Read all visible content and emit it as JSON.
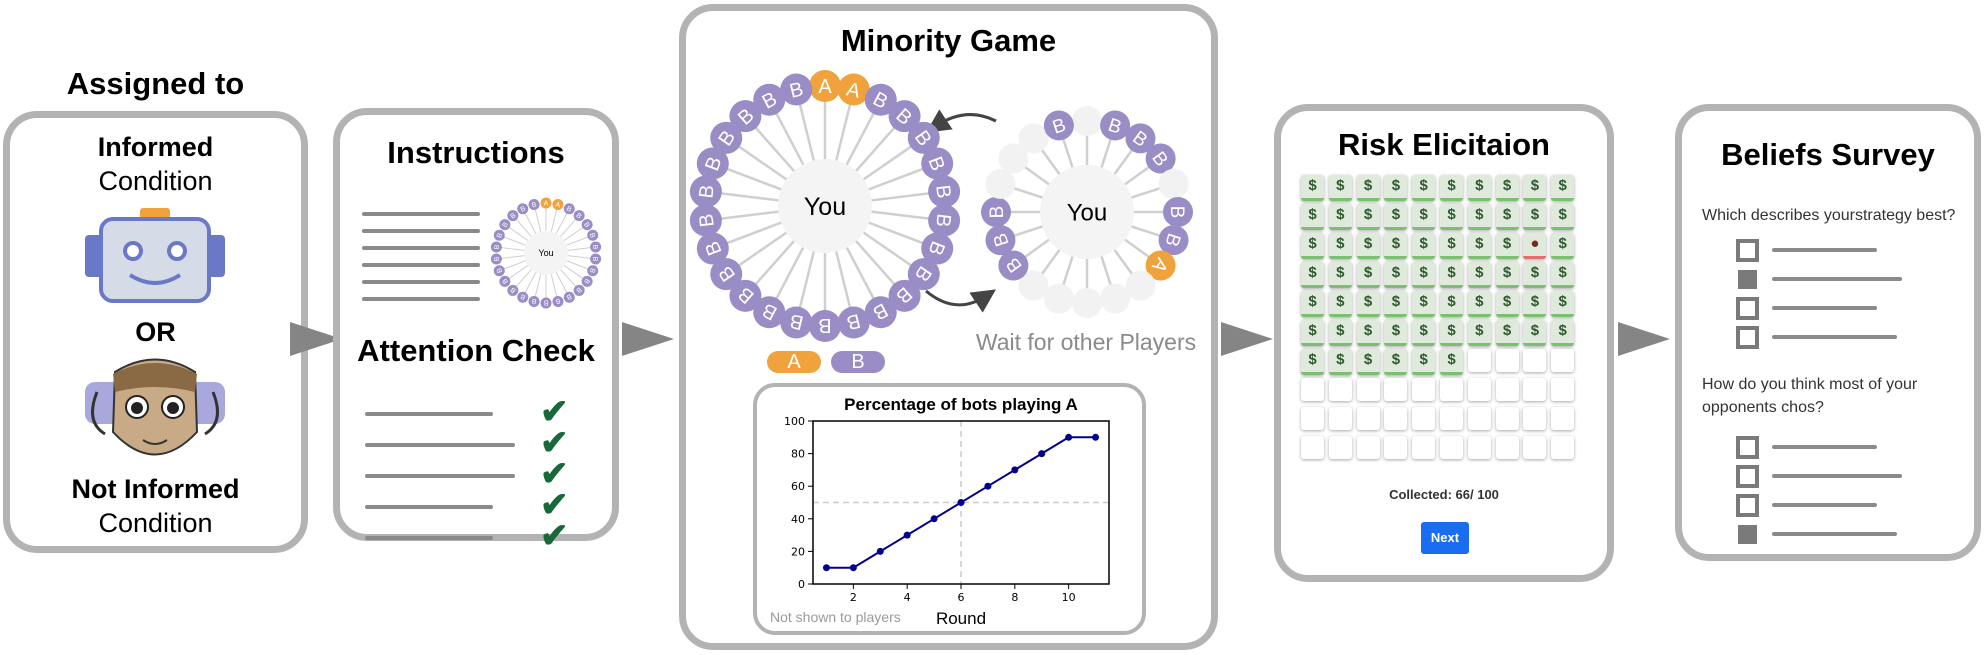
{
  "colors": {
    "A": "#f0a23c",
    "B": "#9a8cc4",
    "panel_border": "#b3b3b3",
    "arrow": "#858585",
    "check": "#17693a",
    "next_button": "#1a6cf0",
    "series": "#00008b"
  },
  "stage1": {
    "heading": "Assigned to",
    "informed_bold": "Informed",
    "informed_sub": "Condition",
    "or": "OR",
    "not_informed_bold": "Not Informed",
    "not_informed_sub": "Condition"
  },
  "stage2": {
    "title": "Instructions",
    "mini_you": "You",
    "attention": "Attention Check"
  },
  "stage3": {
    "title": "Minority Game",
    "you": "You",
    "left_ring": [
      "A",
      "A",
      "B",
      "B",
      "B",
      "B",
      "B",
      "B",
      "B",
      "B",
      "B",
      "B",
      "B",
      "B",
      "B",
      "B",
      "B",
      "B",
      "B",
      "B",
      "B",
      "B",
      "B",
      "B",
      "B",
      "B"
    ],
    "right_ring": [
      "",
      "B",
      "B",
      "B",
      "",
      "B",
      "B",
      "A",
      "",
      "",
      "",
      "",
      "",
      "B",
      "B",
      "B",
      "",
      "",
      "",
      "B"
    ],
    "legend_a": "A",
    "legend_b": "B",
    "wait": "Wait for other Players",
    "chart_note": "Not shown to players"
  },
  "chart_data": {
    "type": "line",
    "title": "Percentage of bots playing A",
    "xlabel": "Round",
    "ylabel": "",
    "x": [
      1,
      2,
      3,
      4,
      5,
      6,
      7,
      8,
      9,
      10,
      11
    ],
    "values": [
      10,
      10,
      20,
      30,
      40,
      50,
      60,
      70,
      80,
      90,
      90
    ],
    "xlim": [
      0.5,
      11.5
    ],
    "ylim": [
      0,
      100
    ],
    "xticks": [
      2,
      4,
      6,
      8,
      10
    ],
    "yticks": [
      0,
      20,
      40,
      60,
      80,
      100
    ],
    "reference_lines": {
      "x": 6,
      "y": 50
    }
  },
  "stage4": {
    "title": "Risk Elicitaion",
    "grid_rows": 10,
    "grid_cols": 10,
    "collected_count": 66,
    "bomb_row": 3,
    "bomb_col": 9,
    "money_symbol": "$",
    "collected_text": "Collected: 66/ 100",
    "next": "Next"
  },
  "stage5": {
    "title": "Beliefs Survey",
    "q1": "Which describes yourstrategy best?",
    "q1_selected": 1,
    "q2": "How do you think most of your opponents chos?",
    "q2_selected": 3
  }
}
